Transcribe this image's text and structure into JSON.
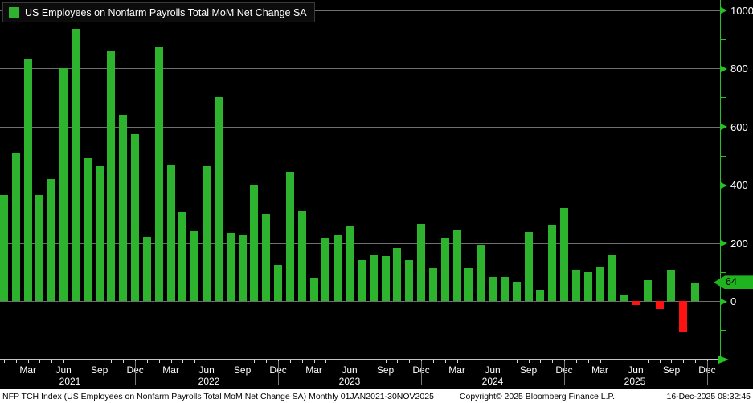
{
  "chart_data": {
    "type": "bar",
    "title": "US Employees on Nonfarm Payrolls Total MoM Net Change SA",
    "x": [
      "Jan 2021",
      "Feb 2021",
      "Mar 2021",
      "Apr 2021",
      "May 2021",
      "Jun 2021",
      "Jul 2021",
      "Aug 2021",
      "Sep 2021",
      "Oct 2021",
      "Nov 2021",
      "Dec 2021",
      "Jan 2022",
      "Feb 2022",
      "Mar 2022",
      "Apr 2022",
      "May 2022",
      "Jun 2022",
      "Jul 2022",
      "Aug 2022",
      "Sep 2022",
      "Oct 2022",
      "Nov 2022",
      "Dec 2022",
      "Jan 2023",
      "Feb 2023",
      "Mar 2023",
      "Apr 2023",
      "May 2023",
      "Jun 2023",
      "Jul 2023",
      "Aug 2023",
      "Sep 2023",
      "Oct 2023",
      "Nov 2023",
      "Dec 2023",
      "Jan 2024",
      "Feb 2024",
      "Mar 2024",
      "Apr 2024",
      "May 2024",
      "Jun 2024",
      "Jul 2024",
      "Aug 2024",
      "Sep 2024",
      "Oct 2024",
      "Nov 2024",
      "Dec 2024",
      "Jan 2025",
      "Feb 2025",
      "Mar 2025",
      "Apr 2025",
      "May 2025",
      "Jun 2025",
      "Jul 2025",
      "Aug 2025",
      "Sep 2025",
      "Oct 2025",
      "Nov 2025"
    ],
    "values": [
      365,
      510,
      830,
      365,
      420,
      800,
      935,
      490,
      465,
      862,
      640,
      575,
      220,
      873,
      470,
      305,
      240,
      465,
      700,
      235,
      225,
      400,
      300,
      125,
      445,
      310,
      80,
      215,
      225,
      260,
      140,
      157,
      155,
      183,
      140,
      266,
      114,
      218,
      243,
      112,
      192,
      84,
      84,
      66,
      238,
      40,
      261,
      321,
      109,
      100,
      118,
      157,
      20,
      -13,
      71,
      -28,
      108,
      -105,
      64
    ],
    "ylim": [
      -200,
      1035
    ],
    "yticks": [
      0,
      200,
      400,
      600,
      800,
      1000
    ],
    "ytick_labels": [
      "0",
      "200",
      "400",
      "600",
      "800",
      "1000"
    ],
    "ytick_minor": [
      -100,
      100,
      300,
      500,
      700,
      900
    ],
    "xtick_month_labels": [
      "Mar",
      "Jun",
      "Sep",
      "Dec",
      "Mar",
      "Jun",
      "Sep",
      "Dec",
      "Mar",
      "Jun",
      "Sep",
      "Dec",
      "Mar",
      "Jun",
      "Sep",
      "Dec",
      "Mar",
      "Jun",
      "Sep",
      "Dec"
    ],
    "year_labels": [
      "2021",
      "2022",
      "2023",
      "2024",
      "2025"
    ],
    "last_value": 64,
    "last_value_label": "64",
    "grid": "horizontal",
    "legend_position": "top-left",
    "positive_color": "#2db32d",
    "negative_color": "#ff1212",
    "axis_color": "#25c225",
    "label_color": "#ffffff"
  },
  "status_bar": {
    "left": "NFP TCH Index (US Employees on Nonfarm Payrolls Total MoM Net Change SA) Monthly 01JAN2021-30NOV2025",
    "copyright": "Copyright© 2025 Bloomberg Finance L.P.",
    "timestamp": "16-Dec-2025 08:32:45"
  }
}
